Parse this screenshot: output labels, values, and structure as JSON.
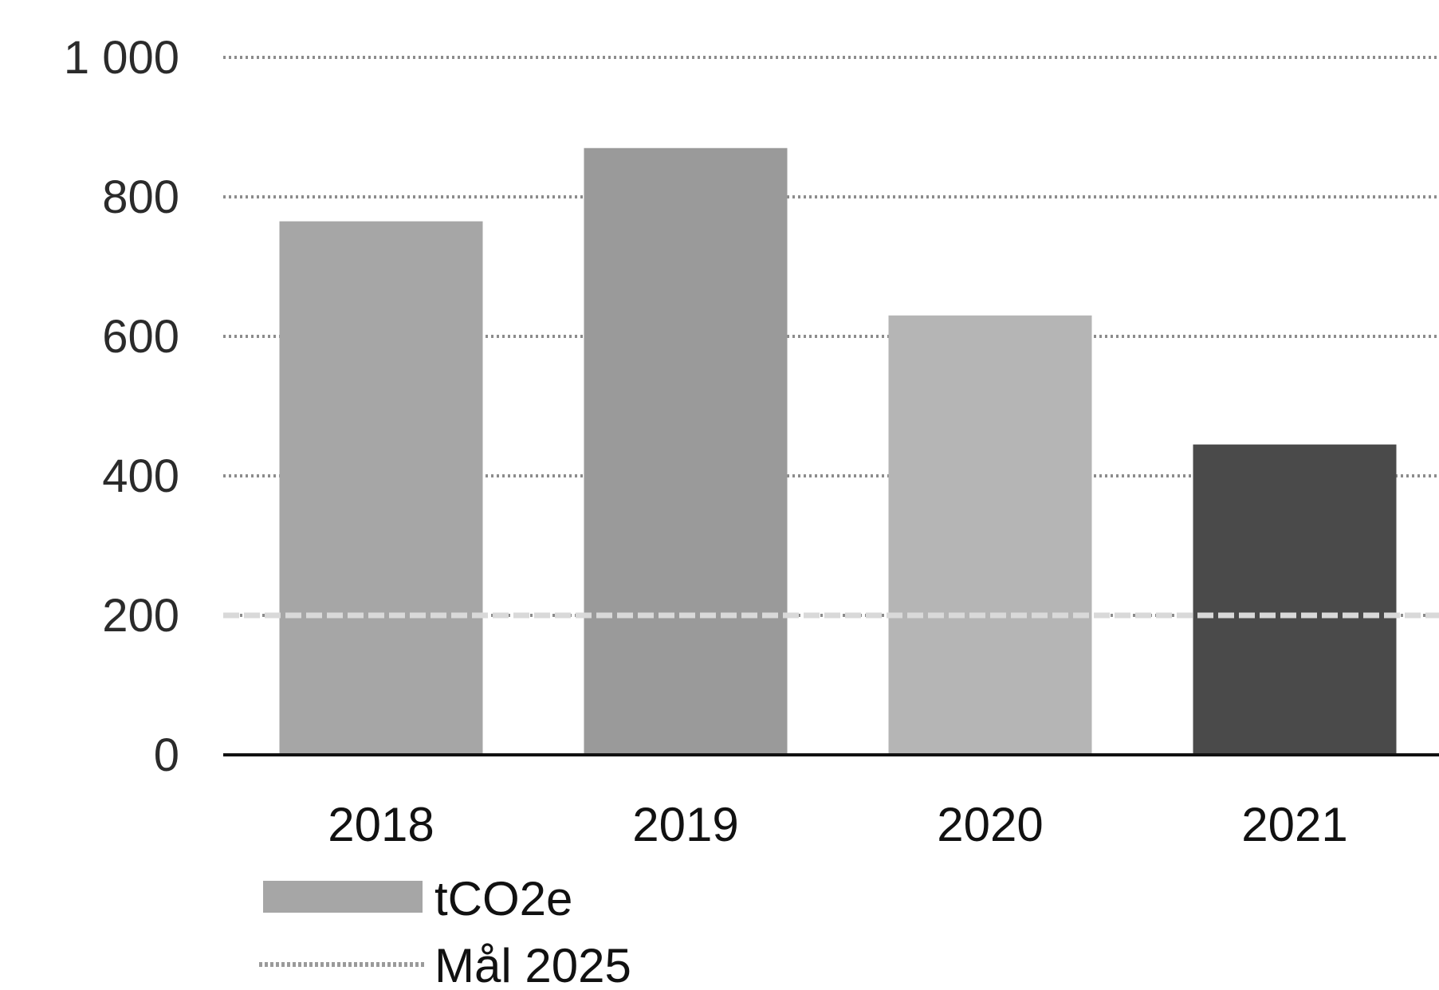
{
  "chart_data": {
    "type": "bar",
    "categories": [
      "2018",
      "2019",
      "2020",
      "2021"
    ],
    "series": [
      {
        "name": "tCO2e",
        "values": [
          765,
          870,
          630,
          445
        ],
        "colors": [
          "#a6a6a6",
          "#9a9a9a",
          "#b5b5b5",
          "#4a4a4a"
        ]
      }
    ],
    "target": {
      "name": "Mål 2025",
      "value": 200,
      "color": "#d9d9d9"
    },
    "y_ticks": [
      "0",
      "200",
      "400",
      "600",
      "800",
      "1 000"
    ],
    "y_tick_values": [
      0,
      200,
      400,
      600,
      800,
      1000
    ],
    "ylim": [
      0,
      1000
    ],
    "grid": "dotted horizontal",
    "legend_position": "bottom-left",
    "title": "",
    "xlabel": "",
    "ylabel": ""
  }
}
